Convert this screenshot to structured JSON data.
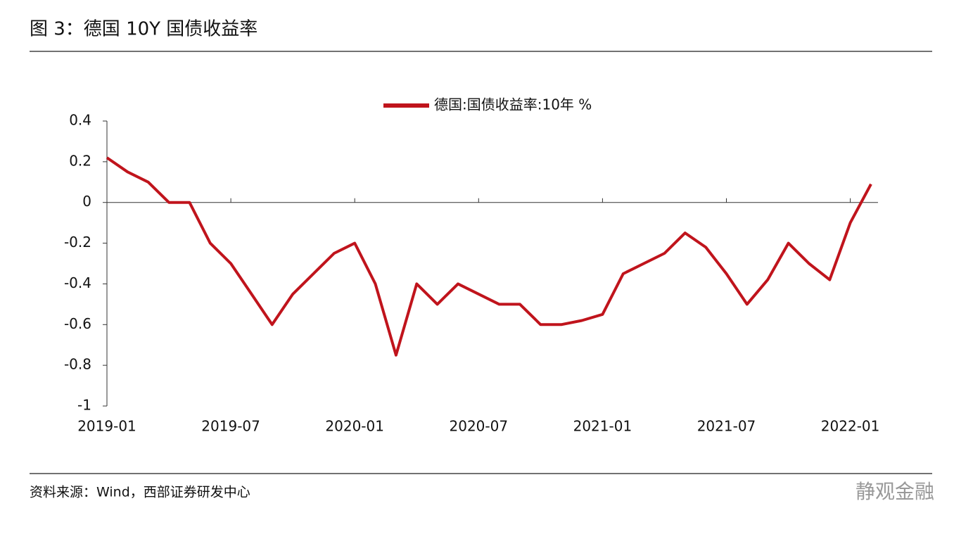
{
  "chart_data": {
    "type": "line",
    "title": "图 3：德国 10Y 国债收益率",
    "source": "资料来源：Wind，西部证券研发中心",
    "watermark": "静观金融",
    "x": [
      "2019-01",
      "2019-02",
      "2019-03",
      "2019-04",
      "2019-05",
      "2019-06",
      "2019-07",
      "2019-08",
      "2019-09",
      "2019-10",
      "2019-11",
      "2019-12",
      "2020-01",
      "2020-02",
      "2020-03",
      "2020-04",
      "2020-05",
      "2020-06",
      "2020-07",
      "2020-08",
      "2020-09",
      "2020-10",
      "2020-11",
      "2020-12",
      "2021-01",
      "2021-02",
      "2021-03",
      "2021-04",
      "2021-05",
      "2021-06",
      "2021-07",
      "2021-08",
      "2021-09",
      "2021-10",
      "2021-11",
      "2021-12",
      "2022-01",
      "2022-02"
    ],
    "series": [
      {
        "name": "德国:国债收益率:10年 %",
        "color": "#c0141c",
        "values": [
          0.22,
          0.15,
          0.1,
          0.0,
          0.0,
          -0.2,
          -0.3,
          -0.45,
          -0.6,
          -0.45,
          -0.35,
          -0.25,
          -0.2,
          -0.4,
          -0.75,
          -0.4,
          -0.5,
          -0.4,
          -0.45,
          -0.5,
          -0.5,
          -0.6,
          -0.6,
          -0.58,
          -0.55,
          -0.35,
          -0.3,
          -0.25,
          -0.15,
          -0.22,
          -0.35,
          -0.5,
          -0.38,
          -0.2,
          -0.3,
          -0.38,
          -0.1,
          0.09
        ]
      }
    ],
    "xticks": [
      "2019-01",
      "2019-07",
      "2020-01",
      "2020-07",
      "2021-01",
      "2021-07",
      "2022-01"
    ],
    "ylim": [
      -1,
      0.4
    ],
    "yticks": [
      0.4,
      0.2,
      0,
      -0.2,
      -0.4,
      -0.6,
      -0.8,
      -1
    ],
    "legend": "top"
  }
}
